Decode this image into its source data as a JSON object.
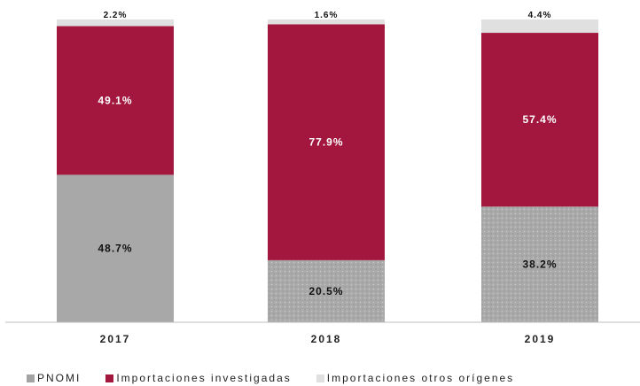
{
  "chart_data": {
    "type": "bar",
    "stacked": true,
    "percent": true,
    "categories": [
      "2017",
      "2018",
      "2019"
    ],
    "series": [
      {
        "name": "PNOMI",
        "values": [
          48.7,
          20.5,
          38.2
        ],
        "labels": [
          "48.7%",
          "20.5%",
          "38.2%"
        ],
        "color": "#a3a3a3"
      },
      {
        "name": "Importaciones investigadas",
        "values": [
          49.1,
          77.9,
          57.4
        ],
        "labels": [
          "49.1%",
          "77.9%",
          "57.4%"
        ],
        "color": "#a3173e"
      },
      {
        "name": "Importaciones otros orígenes",
        "values": [
          2.2,
          1.6,
          4.4
        ],
        "labels": [
          "2.2%",
          "1.6%",
          "4.4%"
        ],
        "color": "#e0e0e0"
      }
    ],
    "ylim": [
      0,
      100
    ],
    "grid": false,
    "legend_position": "bottom"
  }
}
